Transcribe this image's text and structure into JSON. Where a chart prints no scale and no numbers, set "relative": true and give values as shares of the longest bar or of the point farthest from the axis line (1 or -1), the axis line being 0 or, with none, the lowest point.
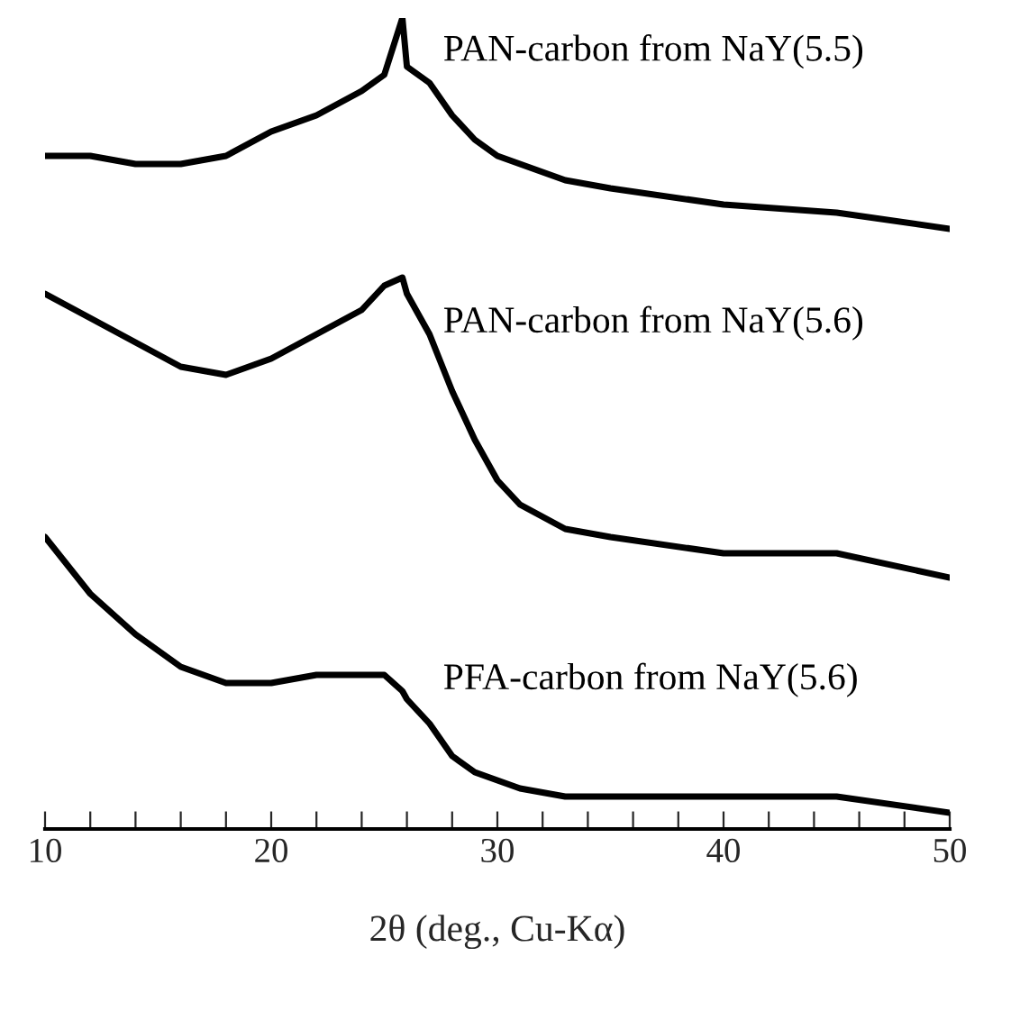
{
  "chart_data": {
    "type": "line",
    "relative": true,
    "xlabel": "2θ (deg., Cu-Kα)",
    "xlim": [
      10,
      50
    ],
    "xticks": [
      10,
      {
        "value": 12,
        "label": null
      },
      {
        "value": 14,
        "label": null
      },
      {
        "value": 16,
        "label": null
      },
      {
        "value": 18,
        "label": null
      },
      20,
      {
        "value": 22,
        "label": null
      },
      {
        "value": 24,
        "label": null
      },
      {
        "value": 26,
        "label": null
      },
      {
        "value": 28,
        "label": null
      },
      30,
      {
        "value": 32,
        "label": null
      },
      {
        "value": 34,
        "label": null
      },
      {
        "value": 36,
        "label": null
      },
      {
        "value": 38,
        "label": null
      },
      40,
      {
        "value": 42,
        "label": null
      },
      {
        "value": 44,
        "label": null
      },
      {
        "value": 46,
        "label": null
      },
      {
        "value": 48,
        "label": null
      },
      50
    ],
    "tick_labels": "x",
    "grid": false,
    "legend": false,
    "marker": "none",
    "line_style": "solid",
    "x": [
      10,
      12,
      14,
      16,
      18,
      20,
      22,
      24,
      25,
      25.8,
      26,
      27,
      28,
      29,
      30,
      31,
      33,
      35,
      40,
      45,
      50
    ],
    "series": [
      {
        "name": "PAN-carbon from NaY(5.5)",
        "color": "#000000",
        "values": [
          0.83,
          0.83,
          0.82,
          0.82,
          0.83,
          0.86,
          0.88,
          0.91,
          0.93,
          1.0,
          0.94,
          0.92,
          0.88,
          0.85,
          0.83,
          0.82,
          0.8,
          0.79,
          0.77,
          0.76,
          0.74
        ]
      },
      {
        "name": "PAN-carbon from NaY(5.6)",
        "color": "#000000",
        "values": [
          0.66,
          0.63,
          0.6,
          0.57,
          0.56,
          0.58,
          0.61,
          0.64,
          0.67,
          0.68,
          0.66,
          0.61,
          0.54,
          0.48,
          0.43,
          0.4,
          0.37,
          0.36,
          0.34,
          0.34,
          0.31
        ]
      },
      {
        "name": "PFA-carbon from NaY(5.6)",
        "color": "#000000",
        "values": [
          0.36,
          0.29,
          0.24,
          0.2,
          0.18,
          0.18,
          0.19,
          0.19,
          0.19,
          0.17,
          0.16,
          0.13,
          0.09,
          0.07,
          0.06,
          0.05,
          0.04,
          0.04,
          0.04,
          0.04,
          0.02
        ]
      }
    ]
  }
}
